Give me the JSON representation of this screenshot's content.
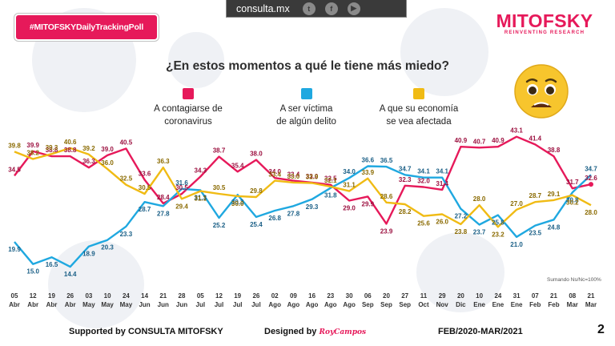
{
  "header": {
    "tag": "#MITOFSKYDailyTrackingPoll",
    "site": "consulta.mx",
    "social_icons": [
      "twitter-icon",
      "facebook-icon",
      "youtube-icon"
    ],
    "brand_name": "MITOFSKY",
    "brand_sub": "REINVENTING RESEARCH"
  },
  "footer": {
    "supported": "Supported by  CONSULTA  MITOFSKY",
    "designed": "Designed by",
    "designer": "RoyCampos",
    "range": "FEB/2020-MAR/2021",
    "page": "2"
  },
  "colors": {
    "pink": "#e6195a",
    "blue": "#1fa8e0",
    "yellow": "#f0bb14",
    "brand": "#e6195a"
  },
  "chart_data": {
    "type": "line",
    "title": "¿En estos momentos a qué le tiene más miedo?",
    "note": "Sumando Ns/Nc=100%",
    "categories": [
      [
        "05",
        "Abr"
      ],
      [
        "12",
        "Abr"
      ],
      [
        "19",
        "Abr"
      ],
      [
        "26",
        "Abr"
      ],
      [
        "03",
        "May"
      ],
      [
        "10",
        "May"
      ],
      [
        "24",
        "May"
      ],
      [
        "14",
        "Jun"
      ],
      [
        "21",
        "Jun"
      ],
      [
        "28",
        "Jun"
      ],
      [
        "05",
        "Jul"
      ],
      [
        "12",
        "Jul"
      ],
      [
        "19",
        "Jul"
      ],
      [
        "26",
        "Jul"
      ],
      [
        "02",
        "Ago"
      ],
      [
        "09",
        "Ago"
      ],
      [
        "16",
        "Ago"
      ],
      [
        "23",
        "Ago"
      ],
      [
        "30",
        "Ago"
      ],
      [
        "06",
        "Sep"
      ],
      [
        "20",
        "Sep"
      ],
      [
        "27",
        "Sep"
      ],
      [
        "11",
        "Oct"
      ],
      [
        "29",
        "Nov"
      ],
      [
        "20",
        "Dic"
      ],
      [
        "10",
        "Ene"
      ],
      [
        "24",
        "Ene"
      ],
      [
        "31",
        "Ene"
      ],
      [
        "07",
        "Feb"
      ],
      [
        "21",
        "Feb"
      ],
      [
        "08",
        "Mar"
      ],
      [
        "21",
        "Mar"
      ]
    ],
    "series": [
      {
        "name": "A contagiarse de coronavirus",
        "name_lines": [
          "A contagiarse de",
          "coronavirus"
        ],
        "color": "#e6195a",
        "values": [
          34.5,
          39.9,
          38.8,
          38.8,
          36.3,
          39.0,
          40.5,
          33.6,
          28.4,
          30.5,
          34.3,
          38.7,
          35.4,
          38.0,
          34.0,
          33.4,
          33.0,
          32.5,
          29.0,
          29.9,
          23.9,
          32.3,
          32.0,
          31.4,
          40.9,
          40.7,
          40.9,
          43.1,
          41.4,
          38.8,
          31.7,
          32.6
        ]
      },
      {
        "name": "A ser víctima de algún delito",
        "name_lines": [
          "A ser víctima",
          "de algún delito"
        ],
        "color": "#1fa8e0",
        "values": [
          19.9,
          15.0,
          16.5,
          14.4,
          18.9,
          20.3,
          23.3,
          28.7,
          27.8,
          31.6,
          31.3,
          25.2,
          30.3,
          25.4,
          26.8,
          27.8,
          29.3,
          31.8,
          34.0,
          36.6,
          36.5,
          34.7,
          34.1,
          34.1,
          27.2,
          23.7,
          25.8,
          21.0,
          23.5,
          24.8,
          30.8,
          34.7
        ]
      },
      {
        "name": "A que su economía se vea afectada",
        "name_lines": [
          "A que su economía",
          "se vea afectada"
        ],
        "color": "#f0bb14",
        "values": [
          39.8,
          38.2,
          39.3,
          40.6,
          39.2,
          36.0,
          32.5,
          30.5,
          36.3,
          29.4,
          31.1,
          30.5,
          30.0,
          29.8,
          33.4,
          33.0,
          32.9,
          32.1,
          31.1,
          33.9,
          28.6,
          28.2,
          25.6,
          26.0,
          23.8,
          28.0,
          23.2,
          27.0,
          28.7,
          29.1,
          30.2,
          28.0
        ]
      }
    ],
    "ylim": [
      10,
      45
    ],
    "grid": false
  }
}
